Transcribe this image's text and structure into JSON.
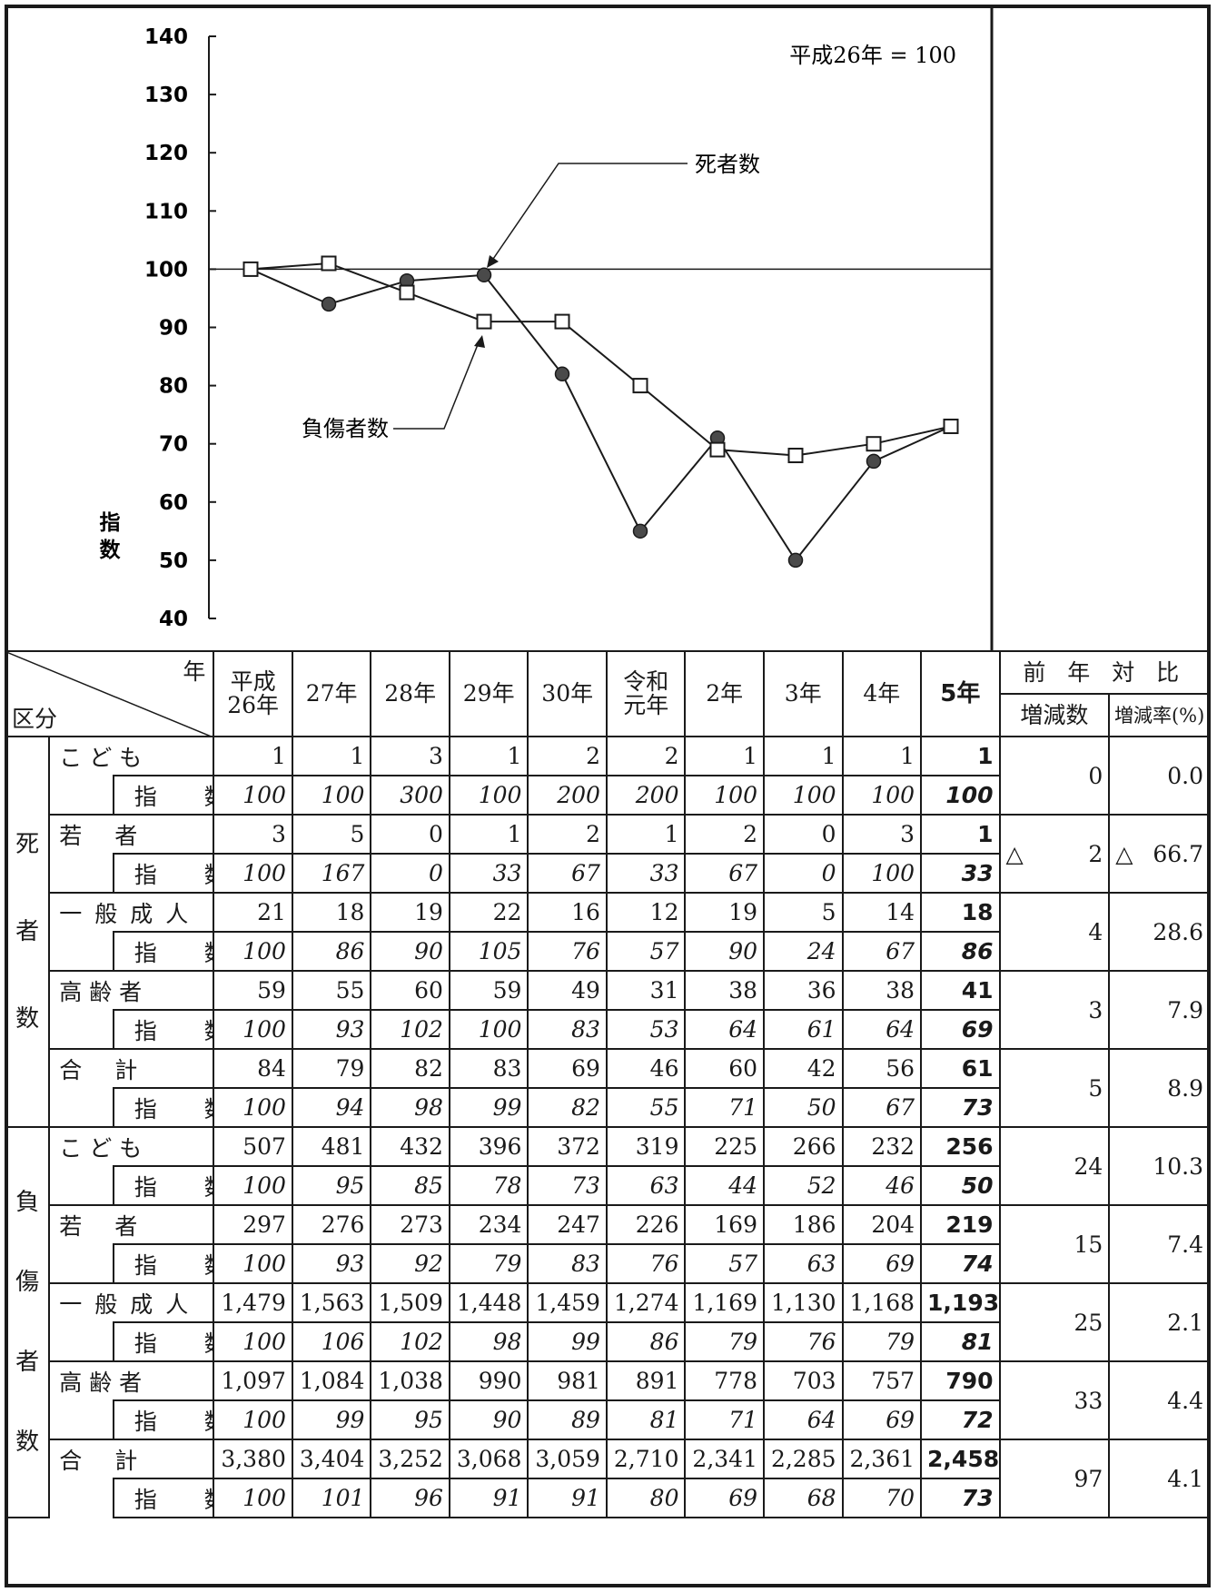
{
  "chart_data": {
    "type": "line",
    "annotation": "平成26年 = 100",
    "ylabel": "指数",
    "ylim": [
      40,
      140
    ],
    "yticks": [
      "140",
      "130",
      "120",
      "110",
      "100",
      "90",
      "80",
      "70",
      "60",
      "50",
      "40"
    ],
    "x": [
      "平成26年",
      "27年",
      "28年",
      "29年",
      "30年",
      "令和元年",
      "2年",
      "3年",
      "4年",
      "5年"
    ],
    "reference_line": 100,
    "series": [
      {
        "name": "死者数",
        "marker": "filled-circle",
        "values": [
          100,
          94,
          98,
          99,
          82,
          55,
          71,
          50,
          67,
          73
        ]
      },
      {
        "name": "負傷者数",
        "marker": "open-square",
        "values": [
          100,
          101,
          96,
          91,
          91,
          80,
          69,
          68,
          70,
          73
        ]
      }
    ]
  },
  "table": {
    "corner_year": "年",
    "corner_category": "区分",
    "years": [
      "平成\n26年",
      "27年",
      "28年",
      "29年",
      "30年",
      "令和\n元年",
      "2年",
      "3年",
      "4年",
      "5年"
    ],
    "compare_header": "前 年 対 比",
    "change_count_header": "増減数",
    "change_rate_header": "増減率(%)",
    "index_label": "指 数",
    "groups": [
      {
        "label": "死 者 数",
        "rows": [
          {
            "label": "こ ど も",
            "values": [
              "1",
              "1",
              "3",
              "1",
              "2",
              "2",
              "1",
              "1",
              "1",
              "1"
            ],
            "index": [
              "100",
              "100",
              "300",
              "100",
              "200",
              "200",
              "100",
              "100",
              "100",
              "100"
            ],
            "change": "0",
            "rate": "0.0"
          },
          {
            "label": "若 者",
            "values": [
              "3",
              "5",
              "0",
              "1",
              "2",
              "1",
              "2",
              "0",
              "3",
              "1"
            ],
            "index": [
              "100",
              "167",
              "0",
              "33",
              "67",
              "33",
              "67",
              "0",
              "100",
              "33"
            ],
            "change": "△ 2",
            "rate": "△ 66.7"
          },
          {
            "label": "一般成人",
            "values": [
              "21",
              "18",
              "19",
              "22",
              "16",
              "12",
              "19",
              "5",
              "14",
              "18"
            ],
            "index": [
              "100",
              "86",
              "90",
              "105",
              "76",
              "57",
              "90",
              "24",
              "67",
              "86"
            ],
            "change": "4",
            "rate": "28.6"
          },
          {
            "label": "高 齢 者",
            "values": [
              "59",
              "55",
              "60",
              "59",
              "49",
              "31",
              "38",
              "36",
              "38",
              "41"
            ],
            "index": [
              "100",
              "93",
              "102",
              "100",
              "83",
              "53",
              "64",
              "61",
              "64",
              "69"
            ],
            "change": "3",
            "rate": "7.9"
          },
          {
            "label": "合 計",
            "values": [
              "84",
              "79",
              "82",
              "83",
              "69",
              "46",
              "60",
              "42",
              "56",
              "61"
            ],
            "index": [
              "100",
              "94",
              "98",
              "99",
              "82",
              "55",
              "71",
              "50",
              "67",
              "73"
            ],
            "change": "5",
            "rate": "8.9"
          }
        ]
      },
      {
        "label": "負 傷 者 数",
        "rows": [
          {
            "label": "こ ど も",
            "values": [
              "507",
              "481",
              "432",
              "396",
              "372",
              "319",
              "225",
              "266",
              "232",
              "256"
            ],
            "index": [
              "100",
              "95",
              "85",
              "78",
              "73",
              "63",
              "44",
              "52",
              "46",
              "50"
            ],
            "change": "24",
            "rate": "10.3"
          },
          {
            "label": "若 者",
            "values": [
              "297",
              "276",
              "273",
              "234",
              "247",
              "226",
              "169",
              "186",
              "204",
              "219"
            ],
            "index": [
              "100",
              "93",
              "92",
              "79",
              "83",
              "76",
              "57",
              "63",
              "69",
              "74"
            ],
            "change": "15",
            "rate": "7.4"
          },
          {
            "label": "一般成人",
            "values": [
              "1,479",
              "1,563",
              "1,509",
              "1,448",
              "1,459",
              "1,274",
              "1,169",
              "1,130",
              "1,168",
              "1,193"
            ],
            "index": [
              "100",
              "106",
              "102",
              "98",
              "99",
              "86",
              "79",
              "76",
              "79",
              "81"
            ],
            "change": "25",
            "rate": "2.1"
          },
          {
            "label": "高 齢 者",
            "values": [
              "1,097",
              "1,084",
              "1,038",
              "990",
              "981",
              "891",
              "778",
              "703",
              "757",
              "790"
            ],
            "index": [
              "100",
              "99",
              "95",
              "90",
              "89",
              "81",
              "71",
              "64",
              "69",
              "72"
            ],
            "change": "33",
            "rate": "4.4"
          },
          {
            "label": "合 計",
            "values": [
              "3,380",
              "3,404",
              "3,252",
              "3,068",
              "3,059",
              "2,710",
              "2,341",
              "2,285",
              "2,361",
              "2,458"
            ],
            "index": [
              "100",
              "101",
              "96",
              "91",
              "91",
              "80",
              "69",
              "68",
              "70",
              "73"
            ],
            "change": "97",
            "rate": "4.1"
          }
        ]
      }
    ]
  }
}
